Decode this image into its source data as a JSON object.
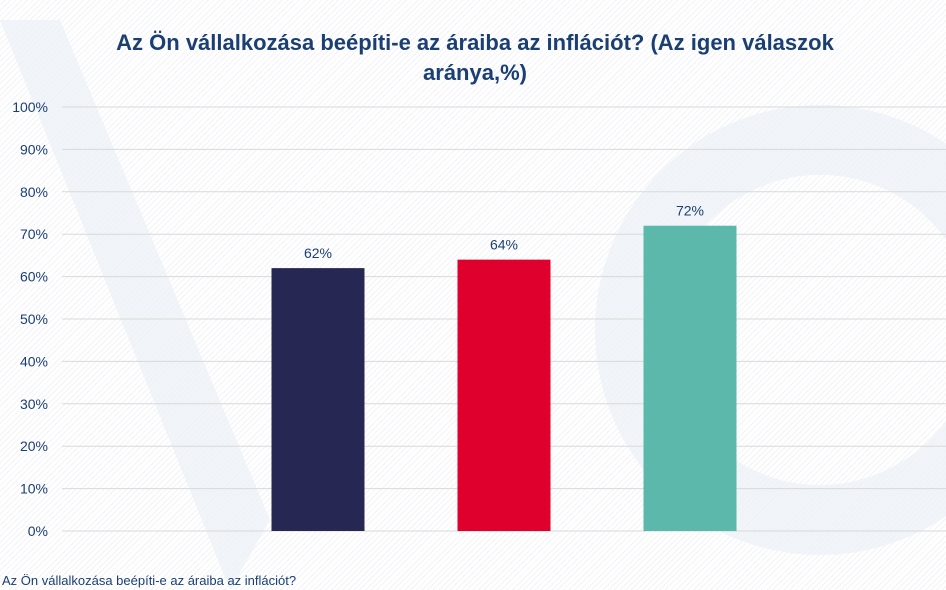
{
  "chart_data": {
    "type": "bar",
    "title": "Az Ön vállalkozása beépíti-e az áraiba az inflációt? (Az igen válaszok aránya,%)",
    "categories": [
      "",
      "",
      ""
    ],
    "values": [
      62,
      64,
      72
    ],
    "data_labels": [
      "62%",
      "64%",
      "72%"
    ],
    "colors": [
      "#262752",
      "#e0002d",
      "#5cb8aa"
    ],
    "yticks": [
      "0%",
      "10%",
      "20%",
      "30%",
      "40%",
      "50%",
      "60%",
      "70%",
      "80%",
      "90%",
      "100%"
    ],
    "ylim": [
      0,
      100
    ],
    "grid": true,
    "xlabel": "",
    "ylabel": ""
  },
  "caption": "Az Ön vállalkozása beépíti-e az áraiba az inflációt?"
}
